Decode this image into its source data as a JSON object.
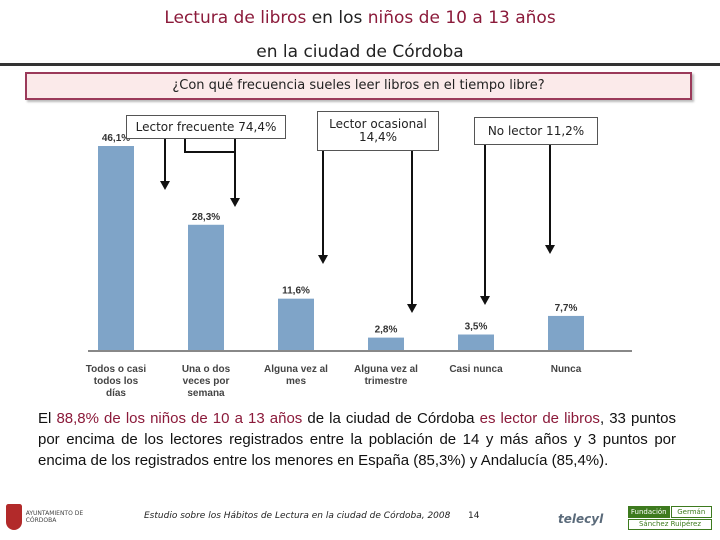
{
  "header": {
    "title_line1_part1": "Lectura de libros",
    "title_line1_part2": " en los ",
    "title_line1_part3": "niños de 10 a 13 años",
    "title_line2": "en la ciudad de Córdoba"
  },
  "question": "¿Con qué frecuencia sueles leer libros en el tiempo libre?",
  "callouts": {
    "frequent": "Lector frecuente 74,4%",
    "occasional": "Lector ocasional 14,4%",
    "non_reader": "No lector 11,2%"
  },
  "chart_data": {
    "type": "bar",
    "categories": [
      "Todos o casi todos los días",
      "Una o dos veces por semana",
      "Alguna vez al mes",
      "Alguna vez al trimestre",
      "Casi nunca",
      "Nunca"
    ],
    "values": [
      46.1,
      28.3,
      11.6,
      2.8,
      3.5,
      7.7
    ],
    "value_labels": [
      "46,1%",
      "28,3%",
      "11,6%",
      "2,8%",
      "3,5%",
      "7,7%"
    ],
    "ylim": [
      0,
      50
    ],
    "bar_color": "#7fa4c8",
    "groups": [
      {
        "label": "Lector frecuente 74,4%",
        "categories": [
          "Todos o casi todos los días",
          "Una o dos veces por semana"
        ]
      },
      {
        "label": "Lector ocasional 14,4%",
        "categories": [
          "Alguna vez al mes",
          "Alguna vez al trimestre"
        ]
      },
      {
        "label": "No lector 11,2%",
        "categories": [
          "Casi nunca",
          "Nunca"
        ]
      }
    ]
  },
  "summary": {
    "p1": "El ",
    "p2": "88,8% de los niños de 10 a 13 años",
    "p3": " de la ciudad de Córdoba ",
    "p4": "es lector de libros",
    "p5": ", 33 puntos por encima de los lectores registrados entre la población de 14 y más años y 3 puntos por encima de los registrados entre los menores en España (85,3%) y Andalucía (85,4%)."
  },
  "footer": {
    "source": "Estudio sobre los Hábitos de Lectura en la ciudad de Córdoba, 2008",
    "page_number": "14",
    "logo_left_text": "AYUNTAMIENTO DE CÓRDOBA",
    "logo_telecyl": "telecyl",
    "logo_fgsr_1": "Fundación",
    "logo_fgsr_2": "Germán",
    "logo_fgsr_3": "Sánchez Ruipérez"
  },
  "colors": {
    "accent": "#8b1a3a",
    "bar": "#7fa4c8"
  }
}
